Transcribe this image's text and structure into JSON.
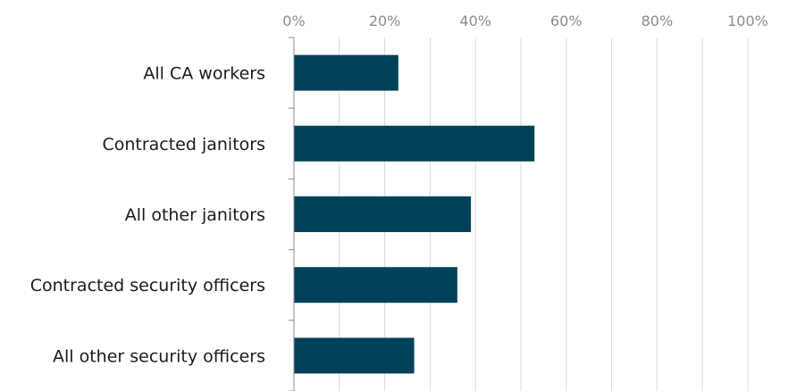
{
  "chart_data": {
    "type": "bar",
    "orientation": "horizontal",
    "categories": [
      "All CA workers",
      "Contracted janitors",
      "All other janitors",
      "Contracted security officers",
      "All other security officers"
    ],
    "values": [
      23,
      53,
      39,
      36,
      26.5
    ],
    "value_unit": "%",
    "xlim": [
      0,
      100
    ],
    "xticks": [
      0,
      20,
      40,
      60,
      80,
      100
    ],
    "xtick_labels": [
      "0%",
      "20%",
      "40%",
      "60%",
      "80%",
      "100%"
    ],
    "x_axis_position": "top",
    "grid": true,
    "bar_color": "#01425a",
    "title": "",
    "xlabel": "",
    "ylabel": ""
  }
}
